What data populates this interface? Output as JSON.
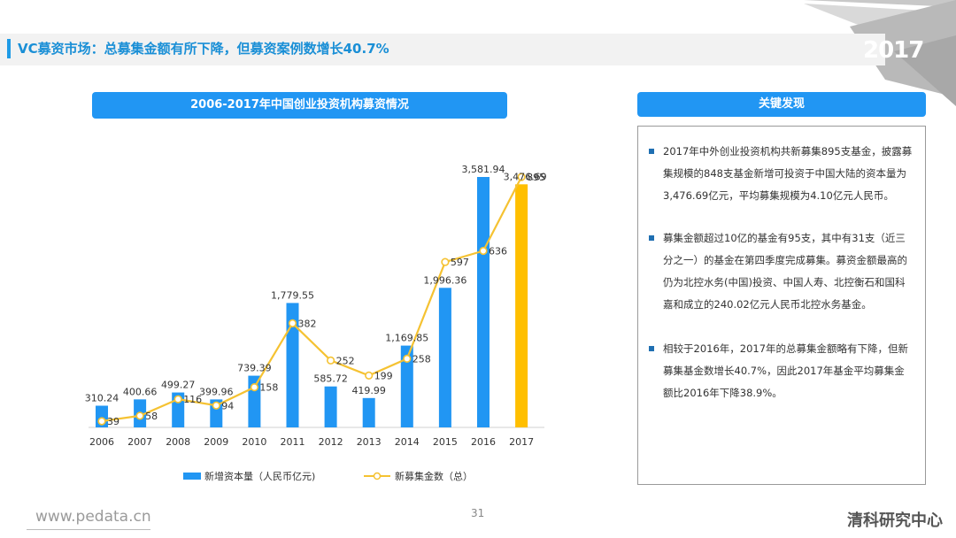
{
  "header": {
    "title": "VC募资市场：总募集金额有所下降，但募资案例数增长40.7%",
    "year": "2017"
  },
  "chart_panel": {
    "title": "2006-2017年中国创业投资机构募资情况"
  },
  "findings_panel": {
    "title": "关键发现",
    "items": [
      "2017年中外创业投资机构共新募集895支基金，披露募集规模的848支基金新增可投资于中国大陆的资本量为3,476.69亿元，平均募集规模为4.10亿元人民币。",
      "募集金额超过10亿的基金有95支，其中有31支（近三分之一）的基金在第四季度完成募集。募资金额最高的仍为北控水务(中国)投资、中国人寿、北控衡石和国科嘉和成立的240.02亿元人民币北控水务基金。",
      "相较于2016年，2017年的总募集金额略有下降，但新募集基金数增长40.7%，因此2017年基金平均募集金额比2016年下降38.9%。"
    ]
  },
  "chart_data": {
    "type": "bar",
    "categories": [
      "2006",
      "2007",
      "2008",
      "2009",
      "2010",
      "2011",
      "2012",
      "2013",
      "2014",
      "2015",
      "2016",
      "2017"
    ],
    "series": [
      {
        "name": "新增资本量（人民币亿元)",
        "type": "bar",
        "values": [
          310.24,
          400.66,
          499.27,
          399.96,
          739.39,
          1779.55,
          585.72,
          419.99,
          1169.85,
          1996.36,
          3581.94,
          3476.69
        ],
        "labels": [
          "310.24",
          "400.66",
          "499.27",
          "399.96",
          "739.39",
          "1,779.55",
          "585.72",
          "419.99",
          "1,169.85",
          "1,996.36",
          "3,581.94",
          "3,476.69"
        ],
        "color": "#2196f3",
        "highlight_color": "#ffbf00"
      },
      {
        "name": "新募集金数（总）",
        "type": "line",
        "values": [
          39,
          58,
          116,
          94,
          158,
          382,
          252,
          199,
          258,
          597,
          636,
          895
        ],
        "labels": [
          "39",
          "58",
          "116",
          "94",
          "158",
          "382",
          "252",
          "199",
          "258",
          "597",
          "636",
          "895"
        ],
        "color": "#f5c232"
      }
    ],
    "xlabel": "",
    "ylabel": "",
    "grid": false,
    "legend": "bottom"
  },
  "footer": {
    "url": "www.pedata.cn",
    "page": "31",
    "brand": "清科研究中心"
  }
}
